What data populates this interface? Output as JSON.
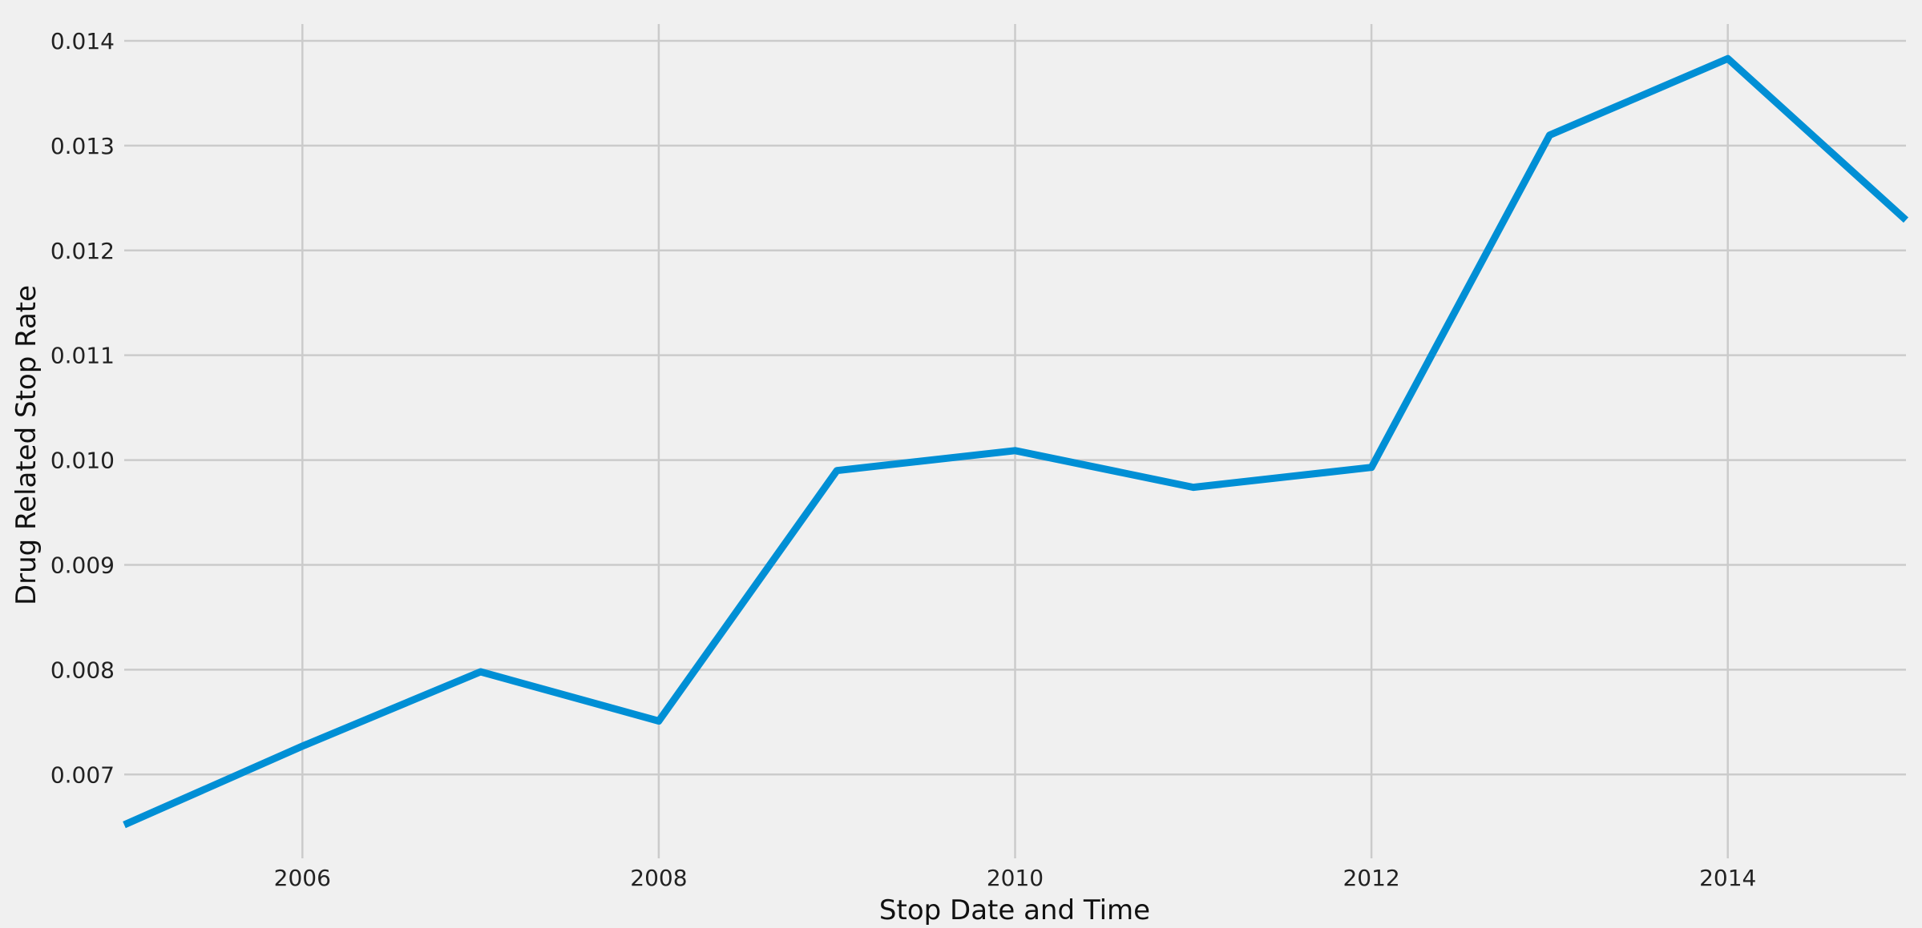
{
  "chart_data": {
    "type": "line",
    "title": "",
    "xlabel": "Stop Date and Time",
    "ylabel": "Drug Related Stop Rate",
    "x": [
      2005,
      2006,
      2007,
      2008,
      2009,
      2010,
      2011,
      2012,
      2013,
      2014,
      2015
    ],
    "series": [
      {
        "values": [
          0.00652,
          0.00727,
          0.00798,
          0.00751,
          0.0099,
          0.01009,
          0.00974,
          0.00993,
          0.0131,
          0.01383,
          0.01229
        ],
        "color": "#008fd5"
      }
    ],
    "xlim": [
      2005,
      2015
    ],
    "ylim": [
      0.0062,
      0.01416
    ],
    "x_ticks": [
      2006,
      2008,
      2010,
      2012,
      2014
    ],
    "x_tick_labels": [
      "2006",
      "2008",
      "2010",
      "2012",
      "2014"
    ],
    "y_ticks": [
      0.007,
      0.008,
      0.009,
      0.01,
      0.011,
      0.012,
      0.013,
      0.014
    ],
    "y_tick_labels": [
      "0.007",
      "0.008",
      "0.009",
      "0.010",
      "0.011",
      "0.012",
      "0.013",
      "0.014"
    ],
    "grid": true,
    "background_color": "#f0f0f0",
    "grid_color": "#cbcbcb"
  }
}
